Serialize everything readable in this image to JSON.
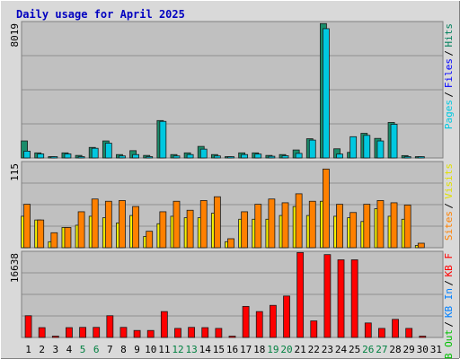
{
  "chart_data": {
    "type": "bar",
    "title": "Daily usage for April 2025",
    "categories": [
      "1",
      "2",
      "3",
      "4",
      "5",
      "6",
      "7",
      "8",
      "9",
      "10",
      "11",
      "12",
      "13",
      "14",
      "15",
      "16",
      "17",
      "18",
      "19",
      "20",
      "21",
      "22",
      "23",
      "24",
      "25",
      "26",
      "27",
      "28",
      "29",
      "30",
      "31"
    ],
    "weekend_days": [
      "5",
      "6",
      "12",
      "13",
      "19",
      "20",
      "26",
      "27"
    ],
    "panels": [
      {
        "ymax_label": "8019",
        "ymax": 8019,
        "legend": [
          {
            "text": "Hits",
            "color": "#00805c"
          },
          {
            "text": "Files",
            "color": "#0000ff"
          },
          {
            "text": "Pages",
            "color": "#00c8e0"
          }
        ],
        "series": [
          {
            "name": "Hits",
            "color": "#1a8c6a",
            "values": [
              1000,
              300,
              50,
              300,
              150,
              620,
              1000,
              200,
              430,
              150,
              2200,
              200,
              300,
              680,
              200,
              30,
              300,
              300,
              150,
              200,
              470,
              1130,
              7900,
              540,
              330,
              1450,
              1150,
              2090,
              140,
              30,
              0
            ]
          },
          {
            "name": "Files",
            "color": "#00c8e0",
            "values": [
              400,
              240,
              30,
              240,
              60,
              570,
              870,
              120,
              200,
              80,
              2150,
              120,
              200,
              520,
              120,
              20,
              200,
              230,
              100,
              130,
              270,
              1050,
              7600,
              230,
              1250,
              1330,
              1000,
              1980,
              80,
              20,
              0
            ]
          }
        ]
      },
      {
        "ymax_label": "115",
        "ymax": 115,
        "legend": [
          {
            "text": "Visits",
            "color": "#e0e000"
          },
          {
            "text": "Sites",
            "color": "#ff8000"
          }
        ],
        "series": [
          {
            "name": "Visits",
            "color": "#f5f000",
            "values": [
              42,
              37,
              8,
              27,
              30,
              42,
              40,
              33,
              43,
              15,
              32,
              42,
              40,
              40,
              46,
              8,
              38,
              38,
              38,
              43,
              55,
              43,
              62,
              42,
              40,
              35,
              52,
              42,
              38,
              3,
              0
            ]
          },
          {
            "name": "Sites",
            "color": "#ff8000",
            "values": [
              58,
              37,
              20,
              27,
              48,
              65,
              62,
              63,
              55,
              22,
              48,
              62,
              50,
              63,
              68,
              12,
              48,
              58,
              65,
              60,
              72,
              62,
              105,
              58,
              47,
              58,
              63,
              60,
              57,
              6,
              0
            ]
          }
        ]
      },
      {
        "ymax_label": "16638",
        "ymax": 16638,
        "legend": [
          {
            "text": "KB F",
            "color": "#ff0000"
          },
          {
            "text": "KB In",
            "color": "#0080ff"
          },
          {
            "text": "KB Out",
            "color": "#00c000"
          }
        ],
        "series": [
          {
            "name": "KB F",
            "color": "#ff0000",
            "values": [
              4200,
              1900,
              120,
              1900,
              1950,
              1950,
              4200,
              1950,
              1350,
              1350,
              5000,
              1750,
              1950,
              1900,
              1750,
              130,
              6000,
              5000,
              6200,
              8000,
              16400,
              3200,
              16000,
              15000,
              15000,
              2800,
              1750,
              3500,
              1750,
              120,
              0
            ]
          }
        ]
      }
    ]
  }
}
